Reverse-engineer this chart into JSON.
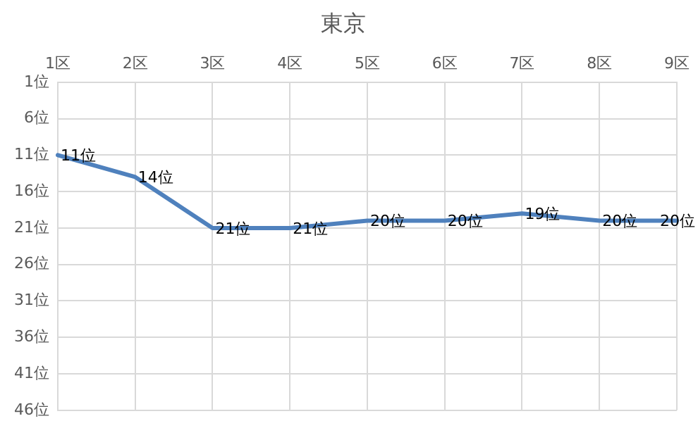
{
  "chart_data": {
    "type": "line",
    "title": "東京",
    "categories": [
      "1区",
      "2区",
      "3区",
      "4区",
      "5区",
      "6区",
      "7区",
      "8区",
      "9区"
    ],
    "series": [
      {
        "color": "#4f81bd",
        "values": [
          11,
          14,
          21,
          21,
          20,
          20,
          19,
          20,
          20
        ],
        "value_labels": [
          "11位",
          "14位",
          "21位",
          "21位",
          "20位",
          "20位",
          "19位",
          "20位",
          "20位"
        ]
      }
    ],
    "ylim": [
      46,
      1
    ],
    "yticks": [
      {
        "value": 1,
        "label": "1位"
      },
      {
        "value": 6,
        "label": "6位"
      },
      {
        "value": 11,
        "label": "11位"
      },
      {
        "value": 16,
        "label": "16位"
      },
      {
        "value": 21,
        "label": "21位"
      },
      {
        "value": 26,
        "label": "26位"
      },
      {
        "value": 31,
        "label": "31位"
      },
      {
        "value": 36,
        "label": "36位"
      },
      {
        "value": 41,
        "label": "41位"
      },
      {
        "value": 46,
        "label": "46位"
      }
    ],
    "grid": true,
    "legend": false,
    "marker": "none",
    "line_style": "solid"
  }
}
